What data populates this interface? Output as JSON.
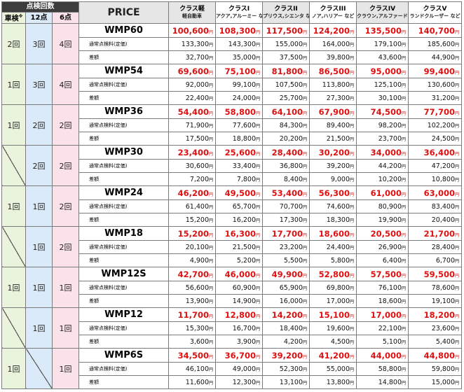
{
  "header": {
    "group_label": "点検回数",
    "col_sha": "車検",
    "sha_note": "※",
    "col_12": "12点",
    "col_6": "6点",
    "price": "PRICE"
  },
  "classes": [
    {
      "name": "クラス軽",
      "models": "軽自動車"
    },
    {
      "name": "クラスI",
      "models": "アクア,アルーミー など"
    },
    {
      "name": "クラスII",
      "models": "プリウス,シエンタ など"
    },
    {
      "name": "クラスIII",
      "models": "ノア,ハリアー など"
    },
    {
      "name": "クラスIV",
      "models": "クラウン,アルファード など"
    },
    {
      "name": "クラスV",
      "models": "ランドクルーザー など"
    }
  ],
  "labels": {
    "inspection": "通常点検料(定価)",
    "diff": "差額",
    "yen": "円"
  },
  "plans": [
    {
      "model": "WMP60",
      "sha": "2回",
      "n12": "3回",
      "n6": "4回",
      "prices": [
        "100,600",
        "108,300",
        "117,500",
        "124,200",
        "135,500",
        "140,700"
      ],
      "inspection": [
        "133,300",
        "143,300",
        "155,000",
        "164,000",
        "179,100",
        "185,600"
      ],
      "diff": [
        "32,700",
        "35,000",
        "37,500",
        "39,800",
        "43,600",
        "44,900"
      ]
    },
    {
      "model": "WMP54",
      "sha": "1回",
      "n12": "3回",
      "n6": "4回",
      "prices": [
        "69,600",
        "75,100",
        "81,800",
        "86,500",
        "95,000",
        "99,400"
      ],
      "inspection": [
        "92,000",
        "99,100",
        "107,500",
        "113,800",
        "125,100",
        "130,600"
      ],
      "diff": [
        "22,400",
        "24,000",
        "25,700",
        "27,300",
        "30,100",
        "31,200"
      ]
    },
    {
      "model": "WMP36",
      "sha": "1回",
      "n12": "2回",
      "n6": "2回",
      "prices": [
        "54,400",
        "58,800",
        "64,100",
        "67,900",
        "74,500",
        "77,700"
      ],
      "inspection": [
        "71,900",
        "77,600",
        "84,300",
        "89,400",
        "98,200",
        "102,200"
      ],
      "diff": [
        "17,500",
        "18,800",
        "20,200",
        "21,500",
        "23,700",
        "24,500"
      ]
    },
    {
      "model": "WMP30",
      "sha": "",
      "n12": "2回",
      "n6": "2回",
      "prices": [
        "23,400",
        "25,600",
        "28,400",
        "30,200",
        "34,000",
        "36,400"
      ],
      "inspection": [
        "30,600",
        "33,400",
        "36,800",
        "39,200",
        "44,200",
        "47,200"
      ],
      "diff": [
        "7,200",
        "7,800",
        "8,400",
        "9,000",
        "10,200",
        "10,800"
      ]
    },
    {
      "model": "WMP24",
      "sha": "1回",
      "n12": "1回",
      "n6": "2回",
      "prices": [
        "46,200",
        "49,500",
        "53,400",
        "56,300",
        "61,000",
        "63,000"
      ],
      "inspection": [
        "61,400",
        "65,700",
        "70,700",
        "74,600",
        "80,900",
        "83,400"
      ],
      "diff": [
        "15,200",
        "16,200",
        "17,300",
        "18,300",
        "19,900",
        "20,400"
      ]
    },
    {
      "model": "WMP18",
      "sha": "",
      "n12": "1回",
      "n6": "2回",
      "prices": [
        "15,200",
        "16,300",
        "17,700",
        "18,600",
        "20,500",
        "21,700"
      ],
      "inspection": [
        "20,100",
        "21,500",
        "23,200",
        "24,400",
        "26,900",
        "28,400"
      ],
      "diff": [
        "4,900",
        "5,200",
        "5,500",
        "5,800",
        "6,400",
        "6,700"
      ]
    },
    {
      "model": "WMP12S",
      "sha": "1回",
      "n12": "1回",
      "n6": "1回",
      "prices": [
        "42,700",
        "46,000",
        "49,900",
        "52,800",
        "57,500",
        "59,500"
      ],
      "inspection": [
        "56,600",
        "60,900",
        "65,900",
        "69,800",
        "76,100",
        "78,600"
      ],
      "diff": [
        "13,900",
        "14,900",
        "16,000",
        "17,000",
        "18,600",
        "19,100"
      ]
    },
    {
      "model": "WMP12",
      "sha": "",
      "n12": "1回",
      "n6": "1回",
      "prices": [
        "11,700",
        "12,800",
        "14,200",
        "15,100",
        "17,000",
        "18,200"
      ],
      "inspection": [
        "15,300",
        "16,700",
        "18,400",
        "19,600",
        "22,100",
        "23,600"
      ],
      "diff": [
        "3,600",
        "3,900",
        "4,200",
        "4,500",
        "5,100",
        "5,400"
      ]
    },
    {
      "model": "WMP6S",
      "sha": "1回",
      "n12": "",
      "n6": "1回",
      "prices": [
        "34,500",
        "36,700",
        "39,200",
        "41,200",
        "44,000",
        "44,800"
      ],
      "inspection": [
        "46,100",
        "49,000",
        "52,300",
        "55,000",
        "58,800",
        "59,800"
      ],
      "diff": [
        "11,600",
        "12,300",
        "13,100",
        "13,800",
        "14,800",
        "15,000"
      ]
    }
  ],
  "colors": {
    "price": "#dd1111",
    "sha_bg": "#eaf4dc",
    "n12_bg": "#dbeaf8",
    "n6_bg": "#fbe2ea",
    "header_dark": "#3c3c3c"
  }
}
